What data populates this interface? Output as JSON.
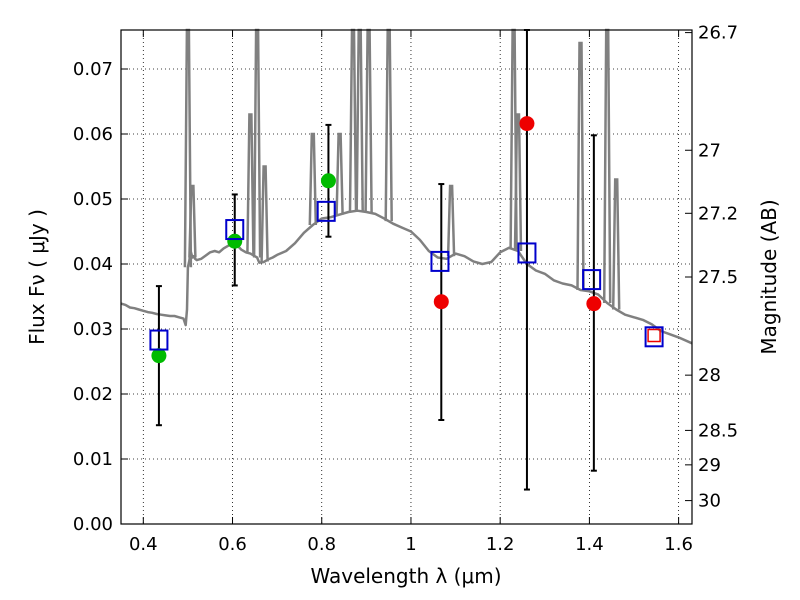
{
  "chart_data": {
    "type": "scatter",
    "xlabel": "Wavelength  λ (μm)",
    "ylabel": "Flux  Fν  ( μJy )",
    "ylabel_right": "Magnitude (AB)",
    "xlim": [
      0.35,
      1.63
    ],
    "ylim": [
      0.0,
      0.076
    ],
    "x_ticks": [
      {
        "value": 0.4,
        "label": "0.4"
      },
      {
        "value": 0.6,
        "label": "0.6"
      },
      {
        "value": 0.8,
        "label": "0.8"
      },
      {
        "value": 1.0,
        "label": "1"
      },
      {
        "value": 1.2,
        "label": "1.2"
      },
      {
        "value": 1.4,
        "label": "1.4"
      },
      {
        "value": 1.6,
        "label": "1.6"
      }
    ],
    "y_ticks": [
      {
        "value": 0.0,
        "label": "0.00"
      },
      {
        "value": 0.01,
        "label": "0.01"
      },
      {
        "value": 0.02,
        "label": "0.02"
      },
      {
        "value": 0.03,
        "label": "0.03"
      },
      {
        "value": 0.04,
        "label": "0.04"
      },
      {
        "value": 0.05,
        "label": "0.05"
      },
      {
        "value": 0.06,
        "label": "0.06"
      },
      {
        "value": 0.07,
        "label": "0.07"
      }
    ],
    "right_ticks": [
      {
        "flux": 0.0756,
        "label": "26.7"
      },
      {
        "flux": 0.0575,
        "label": "27"
      },
      {
        "flux": 0.0478,
        "label": "27.2"
      },
      {
        "flux": 0.038,
        "label": "27.5"
      },
      {
        "flux": 0.0229,
        "label": "28"
      },
      {
        "flux": 0.0144,
        "label": "28.5"
      },
      {
        "flux": 0.0091,
        "label": "29"
      },
      {
        "flux": 0.0036,
        "label": "30"
      }
    ],
    "grid": true,
    "colors": {
      "model": "#808080",
      "model_photometry": "#0000cc",
      "green_points": "#00bb00",
      "red_points": "#ee0000",
      "errorbar": "#000000"
    },
    "model_spectrum": {
      "x": [
        0.35,
        0.36,
        0.37,
        0.38,
        0.39,
        0.4,
        0.41,
        0.42,
        0.43,
        0.44,
        0.45,
        0.46,
        0.47,
        0.48,
        0.49,
        0.495,
        0.498,
        0.5,
        0.503,
        0.506,
        0.51,
        0.513,
        0.516,
        0.52,
        0.53,
        0.54,
        0.55,
        0.56,
        0.57,
        0.58,
        0.59,
        0.6,
        0.61,
        0.62,
        0.63,
        0.64,
        0.65,
        0.655,
        0.66,
        0.67,
        0.68,
        0.69,
        0.7,
        0.72,
        0.74,
        0.76,
        0.78,
        0.8,
        0.82,
        0.84,
        0.86,
        0.88,
        0.9,
        0.92,
        0.94,
        0.96,
        0.98,
        1.0,
        1.02,
        1.04,
        1.06,
        1.08,
        1.1,
        1.12,
        1.14,
        1.16,
        1.18,
        1.2,
        1.22,
        1.24,
        1.26,
        1.28,
        1.3,
        1.32,
        1.34,
        1.36,
        1.38,
        1.4,
        1.42,
        1.44,
        1.46,
        1.48,
        1.5,
        1.52,
        1.54,
        1.56,
        1.58,
        1.6,
        1.63
      ],
      "y": [
        0.0339,
        0.0337,
        0.0333,
        0.0332,
        0.033,
        0.0328,
        0.0326,
        0.0325,
        0.0323,
        0.0322,
        0.0321,
        0.032,
        0.032,
        0.0318,
        0.0316,
        0.0306,
        0.033,
        0.0395,
        0.0405,
        0.042,
        0.041,
        0.0412,
        0.0408,
        0.0406,
        0.0408,
        0.0413,
        0.0418,
        0.042,
        0.0418,
        0.0424,
        0.0428,
        0.0431,
        0.0429,
        0.0422,
        0.0418,
        0.0416,
        0.0412,
        0.041,
        0.0402,
        0.0403,
        0.0407,
        0.041,
        0.0414,
        0.042,
        0.0432,
        0.0448,
        0.046,
        0.047,
        0.0472,
        0.0476,
        0.048,
        0.0482,
        0.048,
        0.0477,
        0.047,
        0.0462,
        0.0456,
        0.045,
        0.0437,
        0.042,
        0.041,
        0.0408,
        0.0416,
        0.0412,
        0.0404,
        0.04,
        0.0403,
        0.0418,
        0.0425,
        0.042,
        0.04,
        0.039,
        0.0385,
        0.0375,
        0.037,
        0.0367,
        0.036,
        0.0358,
        0.0353,
        0.034,
        0.033,
        0.0322,
        0.0318,
        0.0314,
        0.0307,
        0.0297,
        0.0292,
        0.0287,
        0.0278
      ]
    },
    "emission_lines": [
      {
        "x": 0.5,
        "peak": 0.076
      },
      {
        "x": 0.51,
        "peak": 0.052
      },
      {
        "x": 0.655,
        "peak": 0.076
      },
      {
        "x": 0.672,
        "peak": 0.055
      },
      {
        "x": 0.64,
        "peak": 0.063
      },
      {
        "x": 0.87,
        "peak": 0.076
      },
      {
        "x": 0.885,
        "peak": 0.076
      },
      {
        "x": 0.905,
        "peak": 0.076
      },
      {
        "x": 0.95,
        "peak": 0.076
      },
      {
        "x": 0.78,
        "peak": 0.06
      },
      {
        "x": 0.84,
        "peak": 0.06
      },
      {
        "x": 1.09,
        "peak": 0.052
      },
      {
        "x": 1.23,
        "peak": 0.076
      },
      {
        "x": 1.24,
        "peak": 0.063
      },
      {
        "x": 1.38,
        "peak": 0.074
      },
      {
        "x": 1.44,
        "peak": 0.076
      },
      {
        "x": 1.46,
        "peak": 0.053
      }
    ],
    "model_photometry": {
      "x": [
        0.435,
        0.605,
        0.81,
        1.065,
        1.26,
        1.405,
        1.545
      ],
      "y": [
        0.0283,
        0.0453,
        0.0481,
        0.0404,
        0.0417,
        0.0376,
        0.0288
      ]
    },
    "green_points": {
      "x": [
        0.435,
        0.605,
        0.815
      ],
      "y": [
        0.0259,
        0.0435,
        0.0528
      ],
      "err_low": [
        0.0152,
        0.0367,
        0.0442
      ],
      "err_high": [
        0.0366,
        0.0507,
        0.0614
      ]
    },
    "red_points": {
      "x": [
        1.068,
        1.26,
        1.41,
        1.545
      ],
      "y": [
        0.0342,
        0.0616,
        0.0339,
        0.029
      ],
      "err_low": [
        0.016,
        0.0053,
        0.0082,
        null
      ],
      "err_high": [
        0.0523,
        0.076,
        0.0598,
        null
      ]
    }
  }
}
